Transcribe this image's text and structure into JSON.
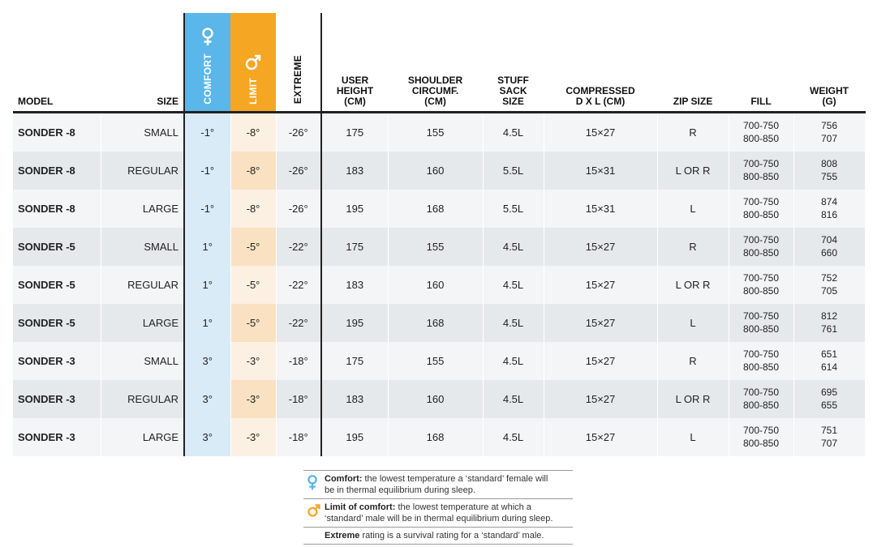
{
  "headers": {
    "model": "MODEL",
    "size": "SIZE",
    "comfort": "COMFORT",
    "limit": "LIMIT",
    "extreme": "EXTREME",
    "user_height": [
      "USER",
      "HEIGHT",
      "(CM)"
    ],
    "shoulder": [
      "SHOULDER",
      "CIRCUMF.",
      "(CM)"
    ],
    "stuff": [
      "STUFF",
      "SACK",
      "SIZE"
    ],
    "compressed": [
      "COMPRESSED",
      "D X L (CM)"
    ],
    "zip": "ZIP SIZE",
    "fill": "FILL",
    "weight": [
      "WEIGHT",
      "(G)"
    ]
  },
  "colors": {
    "comfort": "#5bb6ea",
    "limit": "#f5a623"
  },
  "icons": {
    "comfort": "female-symbol-icon",
    "limit": "male-symbol-icon"
  },
  "rows": [
    {
      "model": "SONDER -8",
      "size": "SMALL",
      "comfort": "-1°",
      "limit": "-8°",
      "extreme": "-26°",
      "height": "175",
      "shoulder": "155",
      "stuff": "4.5L",
      "compressed": "15×27",
      "zip": "R",
      "fill": [
        "700-750",
        "800-850"
      ],
      "weight": [
        "756",
        "707"
      ]
    },
    {
      "model": "SONDER -8",
      "size": "REGULAR",
      "comfort": "-1°",
      "limit": "-8°",
      "extreme": "-26°",
      "height": "183",
      "shoulder": "160",
      "stuff": "5.5L",
      "compressed": "15×31",
      "zip": "L OR R",
      "fill": [
        "700-750",
        "800-850"
      ],
      "weight": [
        "808",
        "755"
      ]
    },
    {
      "model": "SONDER -8",
      "size": "LARGE",
      "comfort": "-1°",
      "limit": "-8°",
      "extreme": "-26°",
      "height": "195",
      "shoulder": "168",
      "stuff": "5.5L",
      "compressed": "15×31",
      "zip": "L",
      "fill": [
        "700-750",
        "800-850"
      ],
      "weight": [
        "874",
        "816"
      ]
    },
    {
      "model": "SONDER -5",
      "size": "SMALL",
      "comfort": "1°",
      "limit": "-5°",
      "extreme": "-22°",
      "height": "175",
      "shoulder": "155",
      "stuff": "4.5L",
      "compressed": "15×27",
      "zip": "R",
      "fill": [
        "700-750",
        "800-850"
      ],
      "weight": [
        "704",
        "660"
      ]
    },
    {
      "model": "SONDER -5",
      "size": "REGULAR",
      "comfort": "1°",
      "limit": "-5°",
      "extreme": "-22°",
      "height": "183",
      "shoulder": "160",
      "stuff": "4.5L",
      "compressed": "15×27",
      "zip": "L OR R",
      "fill": [
        "700-750",
        "800-850"
      ],
      "weight": [
        "752",
        "705"
      ]
    },
    {
      "model": "SONDER -5",
      "size": "LARGE",
      "comfort": "1°",
      "limit": "-5°",
      "extreme": "-22°",
      "height": "195",
      "shoulder": "168",
      "stuff": "4.5L",
      "compressed": "15×27",
      "zip": "L",
      "fill": [
        "700-750",
        "800-850"
      ],
      "weight": [
        "812",
        "761"
      ]
    },
    {
      "model": "SONDER -3",
      "size": "SMALL",
      "comfort": "3°",
      "limit": "-3°",
      "extreme": "-18°",
      "height": "175",
      "shoulder": "155",
      "stuff": "4.5L",
      "compressed": "15×27",
      "zip": "R",
      "fill": [
        "700-750",
        "800-850"
      ],
      "weight": [
        "651",
        "614"
      ]
    },
    {
      "model": "SONDER -3",
      "size": "REGULAR",
      "comfort": "3°",
      "limit": "-3°",
      "extreme": "-18°",
      "height": "183",
      "shoulder": "160",
      "stuff": "4.5L",
      "compressed": "15×27",
      "zip": "L OR R",
      "fill": [
        "700-750",
        "800-850"
      ],
      "weight": [
        "695",
        "655"
      ]
    },
    {
      "model": "SONDER -3",
      "size": "LARGE",
      "comfort": "3°",
      "limit": "-3°",
      "extreme": "-18°",
      "height": "195",
      "shoulder": "168",
      "stuff": "4.5L",
      "compressed": "15×27",
      "zip": "L",
      "fill": [
        "700-750",
        "800-850"
      ],
      "weight": [
        "751",
        "707"
      ]
    }
  ],
  "legend": {
    "comfort": {
      "term": "Comfort:",
      "line1": "the lowest temperature a ‘standard’ female will",
      "line2": "be in thermal equilibrium during sleep."
    },
    "limit": {
      "term": "Limit of comfort:",
      "line1": "the lowest temperature at which a",
      "line2": "‘standard’ male will be in thermal equilibrium during sleep."
    },
    "extreme": {
      "term": "Extreme",
      "line1": "rating is a survival rating for a ‘standard’ male."
    }
  }
}
